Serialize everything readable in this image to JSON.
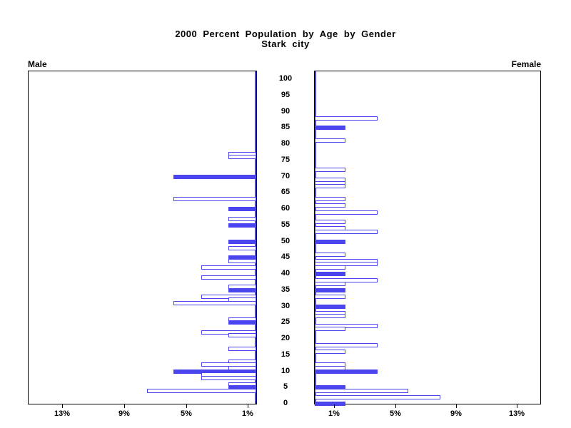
{
  "title": {
    "line1": "2000 Percent Population by Age by Gender",
    "line2": "Stark city"
  },
  "panel_labels": {
    "left": "Male",
    "right": "Female"
  },
  "age_axis": {
    "ticks": [
      0,
      5,
      10,
      15,
      20,
      25,
      30,
      35,
      40,
      45,
      50,
      55,
      60,
      65,
      70,
      75,
      80,
      85,
      90,
      95,
      100
    ]
  },
  "pct_axis": {
    "tick_labels": [
      "1%",
      "5%",
      "9%",
      "13%"
    ],
    "tick_values": [
      1,
      5,
      9,
      13
    ],
    "max_percent": 15
  },
  "colors": {
    "bar_blue": "#4a44ee",
    "axis_black": "#000000",
    "background": "#ffffff"
  },
  "chart_data": {
    "type": "bar",
    "subtype": "population-pyramid",
    "title": "2000 Percent Population by Age by Gender",
    "subtitle": "Stark city",
    "left_series_label": "Male",
    "right_series_label": "Female",
    "x_ticks_percent": [
      1,
      5,
      9,
      13
    ],
    "xlim_percent": [
      0,
      15
    ],
    "age_axis_ticks": [
      0,
      5,
      10,
      15,
      20,
      25,
      30,
      35,
      40,
      45,
      50,
      55,
      60,
      65,
      70,
      75,
      80,
      85,
      90,
      95,
      100
    ],
    "grid": false,
    "legend": "none",
    "bar_style_note": "filled=true bars are solid blue (ages divisible by 5); filled=false bars are white with blue outline; ages not listed have zero percent",
    "male": [
      {
        "age": 77,
        "percent": 1.8,
        "filled": false
      },
      {
        "age": 76,
        "percent": 1.8,
        "filled": false
      },
      {
        "age": 70,
        "percent": 5.4,
        "filled": true
      },
      {
        "age": 63,
        "percent": 5.4,
        "filled": false
      },
      {
        "age": 60,
        "percent": 1.8,
        "filled": true
      },
      {
        "age": 57,
        "percent": 1.8,
        "filled": false
      },
      {
        "age": 55,
        "percent": 1.8,
        "filled": true
      },
      {
        "age": 50,
        "percent": 1.8,
        "filled": true
      },
      {
        "age": 48,
        "percent": 1.8,
        "filled": false
      },
      {
        "age": 45,
        "percent": 1.8,
        "filled": true
      },
      {
        "age": 44,
        "percent": 1.8,
        "filled": false
      },
      {
        "age": 42,
        "percent": 3.6,
        "filled": false
      },
      {
        "age": 39,
        "percent": 3.6,
        "filled": false
      },
      {
        "age": 36,
        "percent": 1.8,
        "filled": false
      },
      {
        "age": 35,
        "percent": 1.8,
        "filled": true
      },
      {
        "age": 33,
        "percent": 3.6,
        "filled": false
      },
      {
        "age": 32,
        "percent": 1.8,
        "filled": false
      },
      {
        "age": 31,
        "percent": 5.4,
        "filled": false
      },
      {
        "age": 26,
        "percent": 1.8,
        "filled": false
      },
      {
        "age": 25,
        "percent": 1.8,
        "filled": true
      },
      {
        "age": 22,
        "percent": 3.6,
        "filled": false
      },
      {
        "age": 21,
        "percent": 1.8,
        "filled": false
      },
      {
        "age": 17,
        "percent": 1.8,
        "filled": false
      },
      {
        "age": 13,
        "percent": 1.8,
        "filled": false
      },
      {
        "age": 12,
        "percent": 3.6,
        "filled": false
      },
      {
        "age": 11,
        "percent": 1.8,
        "filled": false
      },
      {
        "age": 10,
        "percent": 5.4,
        "filled": true
      },
      {
        "age": 9,
        "percent": 3.6,
        "filled": false
      },
      {
        "age": 8,
        "percent": 3.6,
        "filled": false
      },
      {
        "age": 6,
        "percent": 1.8,
        "filled": false
      },
      {
        "age": 5,
        "percent": 1.8,
        "filled": true
      },
      {
        "age": 4,
        "percent": 7.1,
        "filled": false
      }
    ],
    "female": [
      {
        "age": 88,
        "percent": 4.1,
        "filled": false
      },
      {
        "age": 85,
        "percent": 2.0,
        "filled": true
      },
      {
        "age": 81,
        "percent": 2.0,
        "filled": false
      },
      {
        "age": 72,
        "percent": 2.0,
        "filled": false
      },
      {
        "age": 69,
        "percent": 2.0,
        "filled": false
      },
      {
        "age": 68,
        "percent": 2.0,
        "filled": false
      },
      {
        "age": 67,
        "percent": 2.0,
        "filled": false
      },
      {
        "age": 63,
        "percent": 2.0,
        "filled": false
      },
      {
        "age": 61,
        "percent": 2.0,
        "filled": false
      },
      {
        "age": 59,
        "percent": 4.1,
        "filled": false
      },
      {
        "age": 56,
        "percent": 2.0,
        "filled": false
      },
      {
        "age": 54,
        "percent": 2.0,
        "filled": false
      },
      {
        "age": 53,
        "percent": 4.1,
        "filled": false
      },
      {
        "age": 50,
        "percent": 2.0,
        "filled": true
      },
      {
        "age": 46,
        "percent": 2.0,
        "filled": false
      },
      {
        "age": 44,
        "percent": 4.1,
        "filled": false
      },
      {
        "age": 43,
        "percent": 4.1,
        "filled": false
      },
      {
        "age": 42,
        "percent": 2.0,
        "filled": false
      },
      {
        "age": 40,
        "percent": 2.0,
        "filled": true
      },
      {
        "age": 38,
        "percent": 4.1,
        "filled": false
      },
      {
        "age": 37,
        "percent": 2.0,
        "filled": false
      },
      {
        "age": 35,
        "percent": 2.0,
        "filled": true
      },
      {
        "age": 33,
        "percent": 2.0,
        "filled": false
      },
      {
        "age": 30,
        "percent": 2.0,
        "filled": true
      },
      {
        "age": 28,
        "percent": 2.0,
        "filled": false
      },
      {
        "age": 27,
        "percent": 2.0,
        "filled": false
      },
      {
        "age": 24,
        "percent": 4.1,
        "filled": false
      },
      {
        "age": 23,
        "percent": 2.0,
        "filled": false
      },
      {
        "age": 18,
        "percent": 4.1,
        "filled": false
      },
      {
        "age": 16,
        "percent": 2.0,
        "filled": false
      },
      {
        "age": 12,
        "percent": 2.0,
        "filled": false
      },
      {
        "age": 11,
        "percent": 2.0,
        "filled": false
      },
      {
        "age": 10,
        "percent": 4.1,
        "filled": true
      },
      {
        "age": 5,
        "percent": 2.0,
        "filled": true
      },
      {
        "age": 4,
        "percent": 6.1,
        "filled": false
      },
      {
        "age": 2,
        "percent": 8.2,
        "filled": false
      },
      {
        "age": 0,
        "percent": 2.0,
        "filled": true
      }
    ]
  }
}
